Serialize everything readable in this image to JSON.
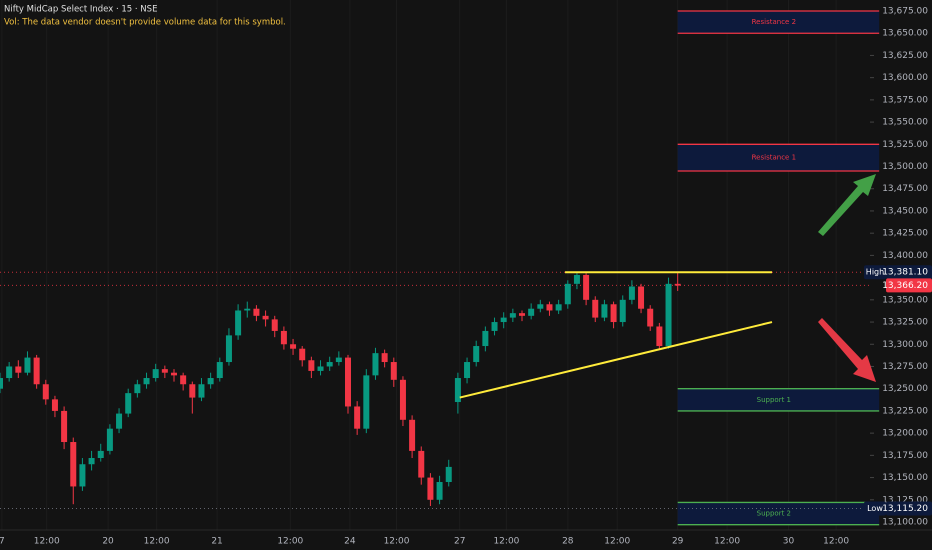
{
  "chart_data": {
    "type": "candlestick",
    "title": "Nifty MidCap Select Index · 15 · NSE",
    "subtitle": "Vol: The data vendor doesn't provide volume data for this symbol.",
    "up_color": "#089981",
    "down_color": "#f23645",
    "xlim": [
      0,
      95
    ],
    "ylim": [
      13100,
      13675
    ],
    "xticks": [
      {
        "value": 0.2,
        "label": "7"
      },
      {
        "value": 5.1,
        "label": "12:00"
      },
      {
        "value": 11.8,
        "label": "20"
      },
      {
        "value": 17.1,
        "label": "12:00"
      },
      {
        "value": 23.7,
        "label": "21"
      },
      {
        "value": 31.7,
        "label": "12:00"
      },
      {
        "value": 38.2,
        "label": "24"
      },
      {
        "value": 43.3,
        "label": "12:00"
      },
      {
        "value": 50.2,
        "label": "27"
      },
      {
        "value": 55.3,
        "label": "12:00"
      },
      {
        "value": 62,
        "label": "28"
      },
      {
        "value": 67.4,
        "label": "12:00"
      },
      {
        "value": 74,
        "label": "29"
      },
      {
        "value": 79.4,
        "label": "12:00"
      },
      {
        "value": 86.1,
        "label": "30"
      },
      {
        "value": 91.3,
        "label": "12:00"
      }
    ],
    "yticks": [
      {
        "value": 13675,
        "label": "13,675.00"
      },
      {
        "value": 13650,
        "label": "13,650.00"
      },
      {
        "value": 13625,
        "label": "13,625.00"
      },
      {
        "value": 13600,
        "label": "13,600.00"
      },
      {
        "value": 13575,
        "label": "13,575.00"
      },
      {
        "value": 13550,
        "label": "13,550.00"
      },
      {
        "value": 13525,
        "label": "13,525.00"
      },
      {
        "value": 13500,
        "label": "13,500.00"
      },
      {
        "value": 13475,
        "label": "13,475.00"
      },
      {
        "value": 13450,
        "label": "13,450.00"
      },
      {
        "value": 13425,
        "label": "13,425.00"
      },
      {
        "value": 13400,
        "label": "13,400.00"
      },
      {
        "value": 13350,
        "label": "13,350.00"
      },
      {
        "value": 13325,
        "label": "13,325.00"
      },
      {
        "value": 13300,
        "label": "13,300.00"
      },
      {
        "value": 13275,
        "label": "13,275.00"
      },
      {
        "value": 13250,
        "label": "13,250.00"
      },
      {
        "value": 13225,
        "label": "13,225.00"
      },
      {
        "value": 13200,
        "label": "13,200.00"
      },
      {
        "value": 13175,
        "label": "13,175.00"
      },
      {
        "value": 13150,
        "label": "13,150.00"
      },
      {
        "value": 13125,
        "label": "13,125.00"
      },
      {
        "value": 13100,
        "label": "13,100.00"
      }
    ],
    "x": [
      0,
      1,
      2,
      3,
      4,
      5,
      6,
      7,
      8,
      9,
      10,
      11,
      12,
      13,
      14,
      15,
      16,
      17,
      18,
      19,
      20,
      21,
      22,
      23,
      24,
      25,
      26,
      27,
      28,
      29,
      30,
      31,
      32,
      33,
      34,
      35,
      36,
      37,
      38,
      39,
      40,
      41,
      42,
      43,
      44,
      45,
      46,
      47,
      48,
      49,
      50,
      51,
      52,
      53,
      54,
      55,
      56,
      57,
      58,
      59,
      60,
      61,
      62,
      63,
      64,
      65,
      66,
      67,
      68,
      69,
      70,
      71,
      72,
      73,
      74
    ],
    "candles": [
      [
        13250,
        13268,
        13245,
        13262
      ],
      [
        13262,
        13280,
        13258,
        13275
      ],
      [
        13275,
        13282,
        13262,
        13268
      ],
      [
        13268,
        13292,
        13265,
        13285
      ],
      [
        13285,
        13288,
        13250,
        13255
      ],
      [
        13255,
        13260,
        13232,
        13238
      ],
      [
        13238,
        13242,
        13218,
        13225
      ],
      [
        13225,
        13230,
        13182,
        13190
      ],
      [
        13190,
        13195,
        13120,
        13140
      ],
      [
        13140,
        13172,
        13135,
        13165
      ],
      [
        13165,
        13180,
        13158,
        13172
      ],
      [
        13172,
        13188,
        13168,
        13180
      ],
      [
        13180,
        13210,
        13176,
        13205
      ],
      [
        13205,
        13228,
        13200,
        13222
      ],
      [
        13222,
        13250,
        13218,
        13245
      ],
      [
        13245,
        13260,
        13240,
        13255
      ],
      [
        13255,
        13268,
        13250,
        13262
      ],
      [
        13262,
        13278,
        13258,
        13272
      ],
      [
        13272,
        13276,
        13262,
        13268
      ],
      [
        13268,
        13272,
        13258,
        13265
      ],
      [
        13265,
        13268,
        13248,
        13255
      ],
      [
        13255,
        13258,
        13222,
        13240
      ],
      [
        13240,
        13262,
        13236,
        13255
      ],
      [
        13255,
        13268,
        13250,
        13262
      ],
      [
        13262,
        13285,
        13258,
        13280
      ],
      [
        13280,
        13318,
        13276,
        13310
      ],
      [
        13310,
        13345,
        13305,
        13338
      ],
      [
        13338,
        13348,
        13330,
        13340
      ],
      [
        13340,
        13344,
        13326,
        13332
      ],
      [
        13332,
        13338,
        13320,
        13328
      ],
      [
        13328,
        13332,
        13308,
        13315
      ],
      [
        13315,
        13320,
        13294,
        13300
      ],
      [
        13300,
        13306,
        13288,
        13295
      ],
      [
        13295,
        13298,
        13275,
        13282
      ],
      [
        13282,
        13286,
        13262,
        13270
      ],
      [
        13270,
        13282,
        13265,
        13275
      ],
      [
        13275,
        13286,
        13270,
        13280
      ],
      [
        13280,
        13292,
        13276,
        13285
      ],
      [
        13285,
        13288,
        13222,
        13230
      ],
      [
        13230,
        13236,
        13198,
        13205
      ],
      [
        13205,
        13272,
        13200,
        13265
      ],
      [
        13265,
        13296,
        13260,
        13290
      ],
      [
        13290,
        13294,
        13274,
        13280
      ],
      [
        13280,
        13285,
        13252,
        13260
      ],
      [
        13260,
        13264,
        13208,
        13215
      ],
      [
        13215,
        13220,
        13172,
        13180
      ],
      [
        13180,
        13185,
        13142,
        13150
      ],
      [
        13150,
        13155,
        13118,
        13125
      ],
      [
        13125,
        13152,
        13120,
        13145
      ],
      [
        13145,
        13170,
        13140,
        13162
      ],
      [
        13235,
        13268,
        13222,
        13262
      ],
      [
        13262,
        13285,
        13256,
        13280
      ],
      [
        13280,
        13304,
        13275,
        13298
      ],
      [
        13298,
        13320,
        13292,
        13315
      ],
      [
        13315,
        13330,
        13310,
        13325
      ],
      [
        13325,
        13336,
        13318,
        13330
      ],
      [
        13330,
        13340,
        13325,
        13335
      ],
      [
        13335,
        13338,
        13326,
        13332
      ],
      [
        13332,
        13346,
        13328,
        13340
      ],
      [
        13340,
        13350,
        13336,
        13345
      ],
      [
        13345,
        13348,
        13332,
        13338
      ],
      [
        13338,
        13350,
        13334,
        13345
      ],
      [
        13345,
        13372,
        13340,
        13368
      ],
      [
        13368,
        13381,
        13362,
        13378
      ],
      [
        13378,
        13380,
        13344,
        13350
      ],
      [
        13350,
        13354,
        13325,
        13330
      ],
      [
        13330,
        13350,
        13326,
        13345
      ],
      [
        13345,
        13348,
        13318,
        13325
      ],
      [
        13325,
        13355,
        13320,
        13350
      ],
      [
        13350,
        13372,
        13345,
        13365
      ],
      [
        13365,
        13368,
        13335,
        13340
      ],
      [
        13340,
        13344,
        13315,
        13320
      ],
      [
        13320,
        13324,
        13295,
        13298
      ],
      [
        13298,
        13375,
        13295,
        13368
      ],
      [
        13368,
        13381,
        13360,
        13366
      ]
    ],
    "zones": [
      {
        "label": "Resistance 2",
        "top": 13675,
        "bottom": 13650,
        "color": "#f23645"
      },
      {
        "label": "Resistance 1",
        "top": 13525,
        "bottom": 13495,
        "color": "#f23645"
      },
      {
        "label": "Support 1",
        "top": 13250,
        "bottom": 13225,
        "color": "#4caf50"
      },
      {
        "label": "Support 2",
        "top": 13122,
        "bottom": 13097,
        "color": "#4caf50"
      }
    ],
    "zone_x": [
      74,
      96
    ],
    "trendlines": [
      {
        "x": [
          50.2,
          84.3
        ],
        "y": [
          13240,
          13325
        ],
        "color": "#ffeb3b"
      },
      {
        "x": [
          61.7,
          84.3
        ],
        "y": [
          13381.1,
          13381.1
        ],
        "color": "#ffeb3b"
      }
    ],
    "high": {
      "label": "High",
      "value": 13381.1,
      "value_label": "13,381.10"
    },
    "last": {
      "value": 13366.2,
      "value_label": "13,366.20"
    },
    "low": {
      "label": "Low",
      "value": 13115.2,
      "value_label": "13,115.20"
    }
  }
}
